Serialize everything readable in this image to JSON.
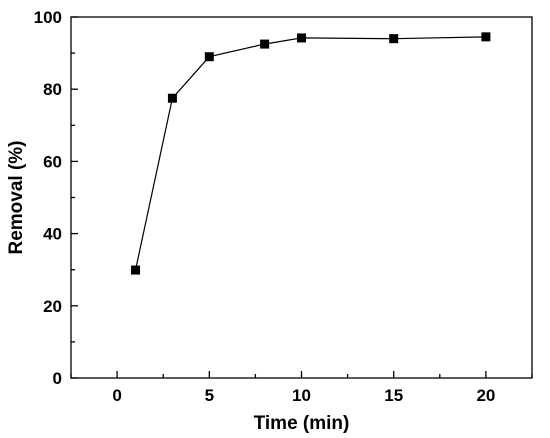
{
  "chart_data": {
    "type": "line",
    "title": "",
    "xlabel": "Time (min)",
    "ylabel": "Removal (%)",
    "xlim": [
      -2.5,
      22.5
    ],
    "ylim": [
      0,
      100
    ],
    "xticks": [
      0,
      5,
      10,
      15,
      20
    ],
    "yticks": [
      0,
      20,
      40,
      60,
      80,
      100
    ],
    "grid": false,
    "legend": "none",
    "series": [
      {
        "marker": "square",
        "color": "#000000",
        "x": [
          1,
          3,
          5,
          8,
          10,
          15,
          20
        ],
        "y": [
          29.9,
          77.5,
          89,
          92.5,
          94.2,
          94,
          94.5
        ]
      }
    ]
  }
}
